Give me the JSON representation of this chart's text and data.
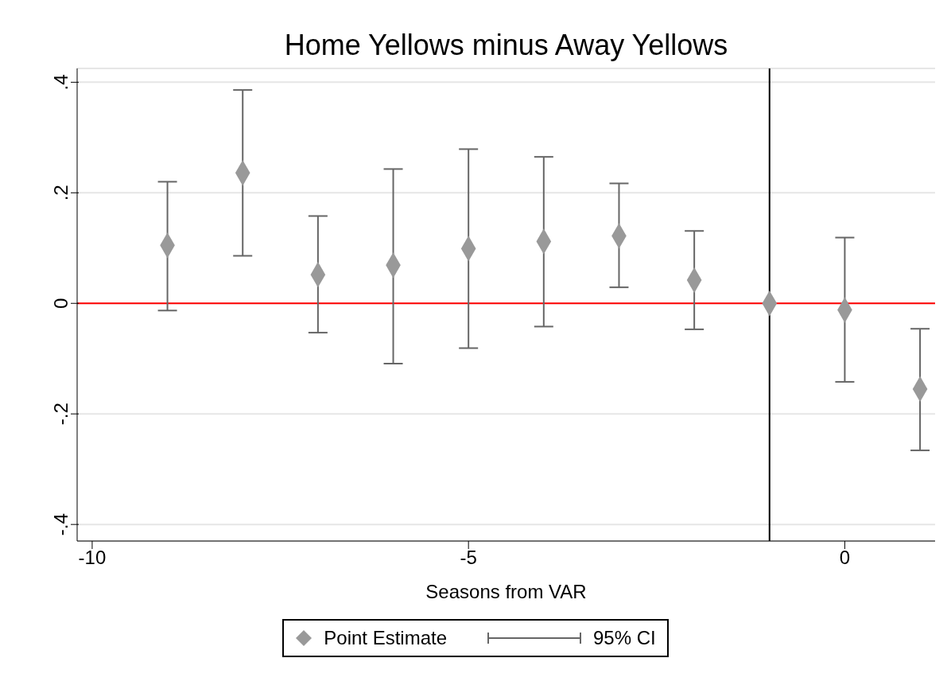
{
  "chart_data": {
    "type": "scatter",
    "title": "Home Yellows minus Away Yellows",
    "xlabel": "Seasons from VAR",
    "x": [
      -9,
      -8,
      -7,
      -6,
      -5,
      -4,
      -3,
      -2,
      -1,
      0,
      1
    ],
    "series": [
      {
        "name": "Point Estimate",
        "color": "#999999",
        "values": [
          0.105,
          0.236,
          0.052,
          0.069,
          0.099,
          0.112,
          0.122,
          0.042,
          0,
          -0.012,
          -0.155
        ],
        "errors": [
          [
            -0.013,
            0.22
          ],
          [
            0.086,
            0.386
          ],
          [
            -0.053,
            0.158
          ],
          [
            -0.109,
            0.243
          ],
          [
            -0.081,
            0.279
          ],
          [
            -0.042,
            0.265
          ],
          [
            0.029,
            0.217
          ],
          [
            -0.047,
            0.131
          ],
          null,
          [
            -0.142,
            0.119
          ],
          [
            -0.266,
            -0.046
          ]
        ]
      }
    ],
    "xlim": [
      -10.2,
      1.2
    ],
    "xticks": [
      -10,
      -5,
      0
    ],
    "ylim": [
      -0.43,
      0.425
    ],
    "yticks": [
      {
        "value": -0.4,
        "label": "-.4"
      },
      {
        "value": -0.2,
        "label": "-.2"
      },
      0,
      {
        "value": 0.2,
        "label": ".2"
      },
      {
        "value": 0.4,
        "label": ".4"
      }
    ],
    "ref_lines": [
      {
        "axis": "y",
        "value": 0,
        "color": "#ff0000"
      },
      {
        "axis": "x",
        "value": -1,
        "color": "#000000"
      }
    ],
    "annotations": [
      "95% CI"
    ],
    "grid": "y",
    "legend": "bottom",
    "marker": "diamond"
  }
}
